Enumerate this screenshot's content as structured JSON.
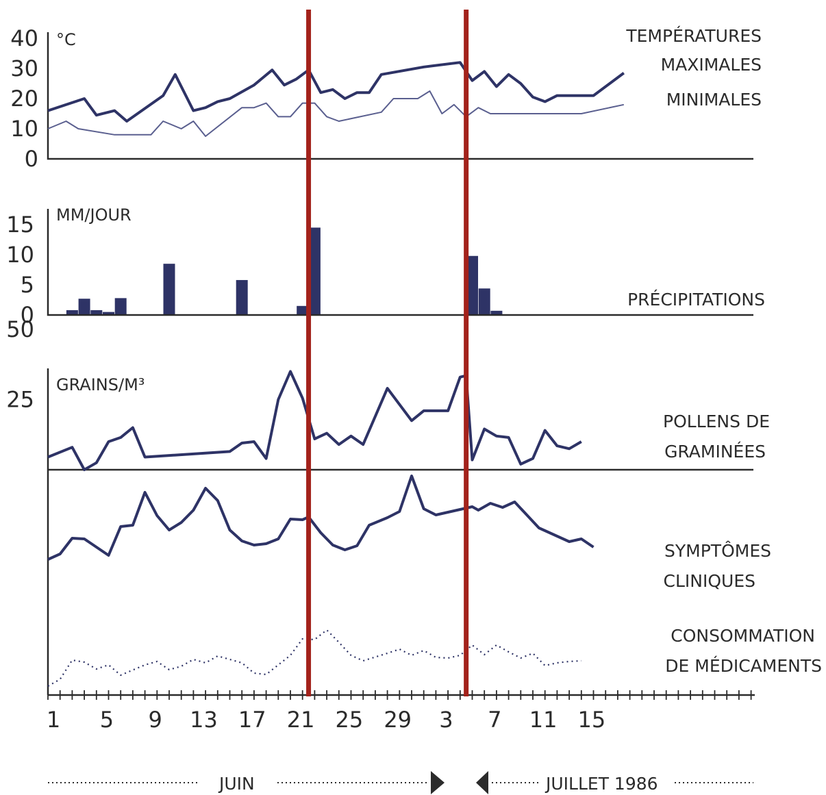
{
  "colors": {
    "navy": "#2e3366",
    "light": "#5a5f8f",
    "red": "#a3221b",
    "ink": "#2b2b2b"
  },
  "chart_data": [
    {
      "type": "line",
      "unit_label": "°C",
      "ylim": [
        0,
        40
      ],
      "yticks": [
        "0",
        "10",
        "20",
        "30",
        "40"
      ],
      "legend_title": "TEMPÉRATURES",
      "series": [
        {
          "name": "MAXIMALES",
          "points": [
            [
              1,
              16
            ],
            [
              4,
              20
            ],
            [
              5,
              14.5
            ],
            [
              6.5,
              16
            ],
            [
              7.5,
              12.5
            ],
            [
              10.5,
              21
            ],
            [
              11.5,
              28
            ],
            [
              13,
              16
            ],
            [
              14,
              17
            ],
            [
              15,
              19
            ],
            [
              16,
              20
            ],
            [
              18,
              24.5
            ],
            [
              19.5,
              29.5
            ],
            [
              20.5,
              24.5
            ],
            [
              21.5,
              26.5
            ],
            [
              22.5,
              29.5
            ],
            [
              23.5,
              22
            ],
            [
              24.5,
              23
            ],
            [
              25.5,
              20
            ],
            [
              26.5,
              22
            ],
            [
              27.5,
              22
            ],
            [
              28.5,
              28
            ],
            [
              32,
              30.5
            ],
            [
              35,
              32
            ],
            [
              36,
              26
            ],
            [
              37,
              29
            ],
            [
              38,
              24
            ],
            [
              39,
              28
            ],
            [
              40,
              25
            ],
            [
              41,
              20.5
            ],
            [
              42,
              19
            ],
            [
              43,
              21
            ],
            [
              46,
              21
            ],
            [
              48.5,
              28.5
            ]
          ]
        },
        {
          "name": "MINIMALES",
          "points": [
            [
              1,
              10
            ],
            [
              2.5,
              12.5
            ],
            [
              3.5,
              10
            ],
            [
              6.5,
              8
            ],
            [
              9.5,
              8
            ],
            [
              10.5,
              12.5
            ],
            [
              12,
              10
            ],
            [
              13,
              12.5
            ],
            [
              14,
              7.5
            ],
            [
              17,
              17
            ],
            [
              18,
              17
            ],
            [
              19,
              18.5
            ],
            [
              20,
              14
            ],
            [
              21,
              14
            ],
            [
              22,
              18.5
            ],
            [
              23,
              18.5
            ],
            [
              24,
              14
            ],
            [
              25,
              12.5
            ],
            [
              28.5,
              15.5
            ],
            [
              29.5,
              20
            ],
            [
              31.5,
              20
            ],
            [
              32.5,
              22.5
            ],
            [
              33.5,
              15
            ],
            [
              34.5,
              18
            ],
            [
              35.5,
              14
            ],
            [
              36.5,
              17
            ],
            [
              37.5,
              15
            ],
            [
              40,
              15
            ],
            [
              45,
              15
            ],
            [
              48.5,
              18
            ]
          ]
        }
      ]
    },
    {
      "type": "bar",
      "unit_label": "MM/JOUR",
      "ylim": [
        0,
        15
      ],
      "yticks": [
        "0",
        "5",
        "10",
        "15"
      ],
      "label": "PRÉCIPITATIONS",
      "bars": [
        [
          3,
          0.8
        ],
        [
          4,
          2.7
        ],
        [
          5,
          0.8
        ],
        [
          6,
          0.5
        ],
        [
          7,
          2.8
        ],
        [
          11,
          8.5
        ],
        [
          17,
          5.8
        ],
        [
          22,
          1.5
        ],
        [
          23,
          14.5
        ],
        [
          36,
          9.8
        ],
        [
          37,
          4.4
        ],
        [
          38,
          0.7
        ]
      ]
    },
    {
      "type": "line",
      "unit_label": "GRAINS/M³",
      "yticks": [
        "25",
        "50"
      ],
      "series": [
        {
          "name": "POLLENS DE GRAMINÉES",
          "points": [
            [
              1,
              4.5
            ],
            [
              3,
              8
            ],
            [
              4,
              0
            ],
            [
              5,
              2.5
            ],
            [
              6,
              10
            ],
            [
              7,
              11.5
            ],
            [
              8,
              15
            ],
            [
              9,
              4.5
            ],
            [
              16,
              6.5
            ],
            [
              17,
              9.5
            ],
            [
              18,
              10
            ],
            [
              19,
              4
            ],
            [
              20,
              25
            ],
            [
              21,
              35
            ],
            [
              22,
              25.5
            ],
            [
              23,
              11
            ],
            [
              24,
              13
            ],
            [
              25,
              9
            ],
            [
              26,
              12
            ],
            [
              27,
              9
            ],
            [
              29,
              29
            ],
            [
              31,
              17.5
            ],
            [
              32,
              21
            ],
            [
              34,
              21
            ],
            [
              35,
              33
            ],
            [
              35.5,
              33.5
            ],
            [
              36,
              3.5
            ],
            [
              37,
              14.5
            ],
            [
              38,
              12
            ],
            [
              39,
              11.5
            ],
            [
              40,
              2
            ],
            [
              41,
              4
            ],
            [
              42,
              14
            ],
            [
              43,
              8.5
            ],
            [
              44,
              7.5
            ],
            [
              45,
              10
            ]
          ]
        },
        {
          "name": "SYMPTÔMES CLINIQUES",
          "points": [
            [
              1,
              127
            ],
            [
              2,
              119
            ],
            [
              3,
              96
            ],
            [
              4,
              97
            ],
            [
              6,
              121
            ],
            [
              7,
              79
            ],
            [
              8,
              77
            ],
            [
              9,
              29
            ],
            [
              10,
              63
            ],
            [
              11,
              84
            ],
            [
              12,
              73
            ],
            [
              13,
              55
            ],
            [
              14,
              23
            ],
            [
              15,
              41
            ],
            [
              16,
              84
            ],
            [
              17,
              100
            ],
            [
              18,
              106
            ],
            [
              19,
              104
            ],
            [
              20,
              97
            ],
            [
              21,
              68
            ],
            [
              22,
              69
            ],
            [
              22.5,
              65
            ],
            [
              23.5,
              88
            ],
            [
              24.5,
              106
            ],
            [
              25.5,
              113
            ],
            [
              26.5,
              107
            ],
            [
              27.5,
              77
            ],
            [
              29,
              66
            ],
            [
              30,
              57
            ],
            [
              31,
              5
            ],
            [
              32,
              53
            ],
            [
              33,
              62
            ],
            [
              36,
              50
            ],
            [
              36.5,
              55
            ],
            [
              37.5,
              45
            ],
            [
              38.5,
              51
            ],
            [
              39.5,
              43
            ],
            [
              41.5,
              81
            ],
            [
              44,
              101
            ],
            [
              45,
              97
            ],
            [
              46,
              109
            ]
          ]
        },
        {
          "name": "CONSOMMATION DE MÉDICAMENTS",
          "points": [
            [
              1,
              112
            ],
            [
              2,
              102
            ],
            [
              3,
              74
            ],
            [
              4,
              77
            ],
            [
              5,
              87
            ],
            [
              6,
              81
            ],
            [
              7,
              96
            ],
            [
              9,
              81
            ],
            [
              10,
              76
            ],
            [
              11,
              88
            ],
            [
              12,
              83
            ],
            [
              13,
              73
            ],
            [
              14,
              78
            ],
            [
              15,
              68
            ],
            [
              17,
              78
            ],
            [
              18,
              93
            ],
            [
              19,
              95
            ],
            [
              21,
              67
            ],
            [
              22,
              43
            ],
            [
              23,
              44
            ],
            [
              24,
              30
            ],
            [
              25,
              48
            ],
            [
              26,
              67
            ],
            [
              27,
              75
            ],
            [
              29,
              64
            ],
            [
              30,
              58
            ],
            [
              31,
              67
            ],
            [
              32,
              60
            ],
            [
              33,
              70
            ],
            [
              34,
              71
            ],
            [
              35,
              67
            ],
            [
              36,
              52
            ],
            [
              37,
              66
            ],
            [
              38,
              52
            ],
            [
              39,
              62
            ],
            [
              40,
              71
            ],
            [
              41,
              64
            ],
            [
              42,
              82
            ],
            [
              43,
              78
            ],
            [
              44,
              76
            ],
            [
              45,
              75
            ]
          ]
        }
      ]
    }
  ],
  "x_axis": {
    "tick_labels": [
      "1",
      "5",
      "9",
      "13",
      "17",
      "21",
      "25",
      "29",
      "3",
      "7",
      "11",
      "15"
    ],
    "month_labels": {
      "june": "JUIN",
      "july": "JUILLET 1986"
    }
  },
  "markers": [
    22.5,
    35.5
  ]
}
